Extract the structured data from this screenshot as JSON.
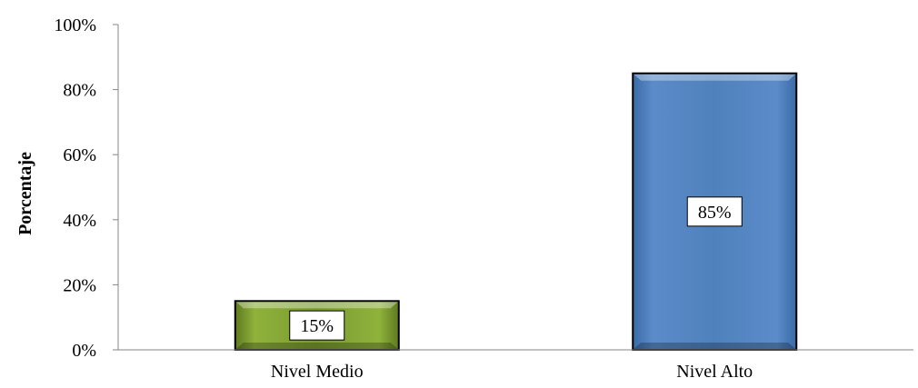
{
  "chart_data": {
    "type": "bar",
    "title": "",
    "xlabel": "",
    "ylabel": "Porcentaje",
    "categories": [
      "Nivel Medio",
      "Nivel Alto"
    ],
    "values": [
      15,
      85
    ],
    "data_labels": [
      "15%",
      "85%"
    ],
    "ylim": [
      0,
      100
    ],
    "y_ticks": [
      "0%",
      "20%",
      "40%",
      "60%",
      "80%",
      "100%"
    ],
    "grid": false,
    "legend": "none",
    "bar_colors": [
      "#7a9a2e",
      "#4f81bd"
    ]
  }
}
